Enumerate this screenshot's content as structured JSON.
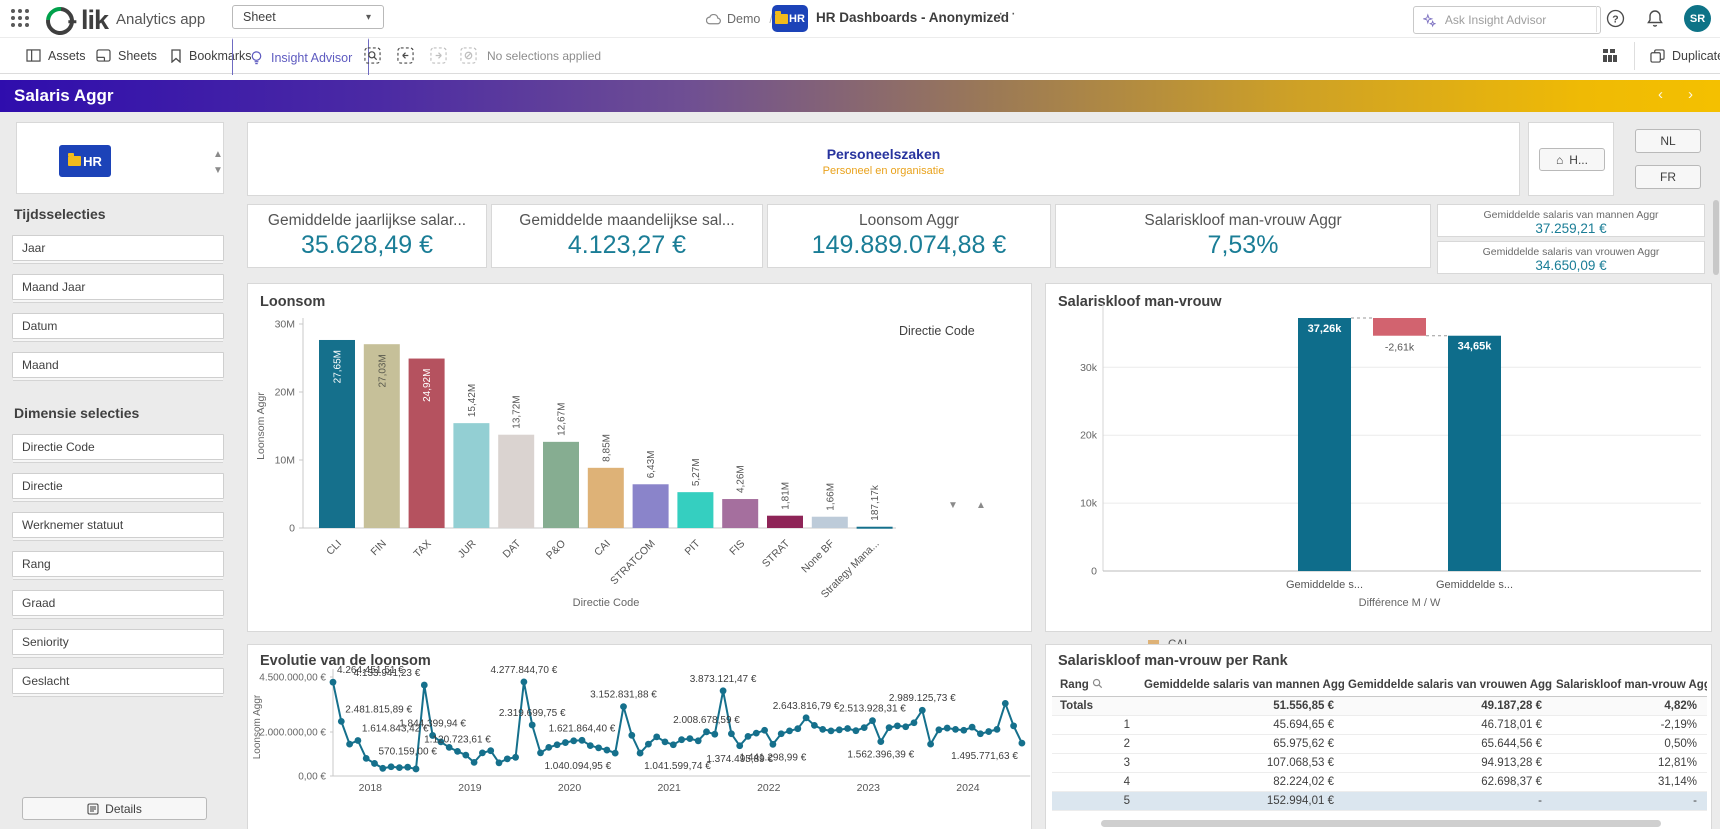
{
  "header": {
    "app_label": "Analytics app",
    "sheet_selector": "Sheet",
    "space_name": "Demo",
    "app_icon_text": "HR",
    "app_name": "HR Dashboards - Anonymized",
    "search_placeholder": "Ask Insight Advisor",
    "avatar_initials": "SR"
  },
  "toolbar": {
    "assets": "Assets",
    "sheets": "Sheets",
    "bookmarks": "Bookmarks",
    "insight_advisor": "Insight Advisor",
    "no_selections": "No selections applied",
    "duplicate": "Duplicate"
  },
  "banner": {
    "title": "Salaris Aggr"
  },
  "sidebar": {
    "logo_text": "HR",
    "sections": [
      {
        "title": "Tijdsselecties",
        "items": [
          "Jaar",
          "Maand Jaar",
          "Datum",
          "Maand"
        ]
      },
      {
        "title": "Dimensie selecties",
        "items": [
          "Directie Code",
          "Directie",
          "Werknemer statuut",
          "Rang",
          "Graad",
          "Seniority",
          "Geslacht"
        ]
      }
    ],
    "details_button": "Details"
  },
  "top_panel": {
    "title": "Personeelszaken",
    "subtitle": "Personeel en organisatie",
    "home_button": "H...",
    "lang_nl": "NL",
    "lang_fr": "FR"
  },
  "kpis": {
    "big": [
      {
        "label": "Gemiddelde jaarlijkse salar...",
        "value": "35.628,49 €"
      },
      {
        "label": "Gemiddelde maandelijkse sal...",
        "value": "4.123,27 €"
      },
      {
        "label": "Loonsom Aggr",
        "value": "149.889.074,88 €"
      },
      {
        "label": "Salariskloof man-vrouw Aggr",
        "value": "7,53%"
      }
    ],
    "small": [
      {
        "label": "Gemiddelde salaris van mannen Aggr",
        "value": "37.259,21 €"
      },
      {
        "label": "Gemiddelde salaris van vrouwen Aggr",
        "value": "34.650,09 €"
      }
    ]
  },
  "colors": {
    "kpi_value": "#1a7d96",
    "teal": "#15708c",
    "waterfall_red": "#d2636f",
    "banner_left": "#2f0dad",
    "banner_right": "#f4c000",
    "insight_purple": "#5e5bc0",
    "panel_title_navy": "#27339e",
    "panel_subtitle_gold": "#e9a21c",
    "selected_row": "#dbe6ef"
  },
  "chart_data": [
    {
      "id": "loonsom",
      "type": "bar",
      "title": "Loonsom",
      "xlabel": "Directie Code",
      "ylabel": "Loonsom Aggr",
      "ylim": [
        0,
        30000000
      ],
      "yticks": [
        "0",
        "10M",
        "20M",
        "30M"
      ],
      "legend": {
        "title": "Directie Code",
        "items": [
          {
            "label": "CAI",
            "color": "#deb277"
          },
          {
            "label": "CLI",
            "color": "#15708c"
          },
          {
            "label": "DAT",
            "color": "#dad3d0"
          },
          {
            "label": "FIN",
            "color": "#c6c099"
          }
        ]
      },
      "bars": [
        {
          "category": "CLI",
          "value": 27650000,
          "value_label": "27,65M",
          "color": "#15708c",
          "label_inside": true,
          "label_color": "#ffffff"
        },
        {
          "category": "FIN",
          "value": 27030000,
          "value_label": "27,03M",
          "color": "#c6c099",
          "label_inside": true,
          "label_color": "#5a5a4e"
        },
        {
          "category": "TAX",
          "value": 24920000,
          "value_label": "24,92M",
          "color": "#b5525f",
          "label_inside": true,
          "label_color": "#ffffff"
        },
        {
          "category": "JUR",
          "value": 15420000,
          "value_label": "15,42M",
          "color": "#93cfd3",
          "label_inside": false,
          "label_color": "#555555"
        },
        {
          "category": "DAT",
          "value": 13720000,
          "value_label": "13,72M",
          "color": "#dad3d0",
          "label_inside": false,
          "label_color": "#555555"
        },
        {
          "category": "P&O",
          "value": 12670000,
          "value_label": "12,67M",
          "color": "#86ad91",
          "label_inside": false,
          "label_color": "#555555"
        },
        {
          "category": "CAI",
          "value": 8850000,
          "value_label": "8,85M",
          "color": "#deb277",
          "label_inside": false,
          "label_color": "#555555"
        },
        {
          "category": "STRATCOM",
          "value": 6430000,
          "value_label": "6,43M",
          "color": "#8a84ca",
          "label_inside": false,
          "label_color": "#555555"
        },
        {
          "category": "PIT",
          "value": 5270000,
          "value_label": "5,27M",
          "color": "#35cfc0",
          "label_inside": false,
          "label_color": "#555555"
        },
        {
          "category": "FIS",
          "value": 4260000,
          "value_label": "4,26M",
          "color": "#a56f9e",
          "label_inside": false,
          "label_color": "#555555"
        },
        {
          "category": "STRAT",
          "value": 1810000,
          "value_label": "1,81M",
          "color": "#8e2457",
          "label_inside": false,
          "label_color": "#555555"
        },
        {
          "category": "None BF",
          "value": 1660000,
          "value_label": "1,66M",
          "color": "#bdcbd9",
          "label_inside": false,
          "label_color": "#555555"
        },
        {
          "category": "Strategy Mana...",
          "value": 187170,
          "value_label": "187,17k",
          "color": "#15708c",
          "label_inside": false,
          "label_color": "#555555"
        }
      ]
    },
    {
      "id": "salariskloof",
      "type": "waterfall",
      "title": "Salariskloof man-vrouw",
      "xlabel": "Différence M / W",
      "yticks": [
        "0",
        "10k",
        "20k",
        "30k"
      ],
      "ylim": [
        0,
        38000
      ],
      "bars": [
        {
          "category": "Gemiddelde s...",
          "value": 37259.21,
          "value_label": "37,26k",
          "color": "#0e6d8b"
        },
        {
          "category": "",
          "value": -2609.12,
          "value_label": "-2,61k",
          "color": "#d2636f"
        },
        {
          "category": "Gemiddelde s...",
          "value": 34650.09,
          "value_label": "34,65k",
          "color": "#0e6d8b"
        }
      ]
    },
    {
      "id": "evolutie",
      "type": "line",
      "title": "Evolutie van de loonsom",
      "ylabel": "Loonsom Aggr",
      "yticks": [
        "0,00 €",
        "2.000.000,00 €",
        "4.500.000,00 €"
      ],
      "ylim": [
        0,
        4500000
      ],
      "x_years": [
        "2018",
        "2019",
        "2020",
        "2021",
        "2022",
        "2023",
        "2024"
      ],
      "series": [
        4264451.51,
        2481815.89,
        1450000,
        1614843.42,
        800000,
        570159.0,
        350000,
        420000,
        380000,
        400000,
        320000,
        4133941.23,
        1844399.94,
        1550000,
        1300000,
        1120723.61,
        950000,
        620000,
        1050000,
        1150000,
        600000,
        780000,
        850000,
        4277844.7,
        2319699.75,
        1050000,
        1300000,
        1420000,
        1520000,
        1600000,
        1621864.4,
        1380000,
        1280000,
        1180000,
        1040094.95,
        3152831.88,
        1850000,
        1041599.74,
        1450000,
        1780000,
        1550000,
        1420000,
        1650000,
        1700000,
        1600000,
        2008678.59,
        1900000,
        3873121.47,
        1920000,
        1374495.89,
        1800000,
        1950000,
        2080000,
        1441298.99,
        1920000,
        2050000,
        2150000,
        2643816.79,
        2300000,
        2120000,
        2050000,
        2100000,
        2160000,
        2060000,
        2200000,
        2513928.31,
        1562396.39,
        2200000,
        2280000,
        2240000,
        2420000,
        2989125.73,
        1450000,
        2100000,
        2180000,
        2120000,
        2080000,
        2220000,
        1920000,
        2020000,
        2120000,
        3300000,
        2280000,
        1495771.63
      ],
      "point_labels": [
        {
          "i": 0,
          "text": "4.264.451,51 €",
          "side": "above",
          "anchor": "start"
        },
        {
          "i": 1,
          "text": "2.481.815,89 €",
          "side": "above",
          "anchor": "start"
        },
        {
          "i": 3,
          "text": "1.614.843,42 €",
          "side": "above",
          "anchor": "start"
        },
        {
          "i": 5,
          "text": "570.159,00 €",
          "side": "above",
          "anchor": "start"
        },
        {
          "i": 11,
          "text": "4.133.941,23 €",
          "side": "above",
          "anchor": "end"
        },
        {
          "i": 12,
          "text": "1.844.399,94 €",
          "side": "above",
          "anchor": "middle"
        },
        {
          "i": 15,
          "text": "1.120.723,61 €",
          "side": "above",
          "anchor": "middle"
        },
        {
          "i": 23,
          "text": "4.277.844,70 €",
          "side": "above",
          "anchor": "middle"
        },
        {
          "i": 24,
          "text": "2.319.699,75 €",
          "side": "above",
          "anchor": "middle"
        },
        {
          "i": 30,
          "text": "1.621.864,40 €",
          "side": "above",
          "anchor": "middle"
        },
        {
          "i": 34,
          "text": "1.040.094,95 €",
          "side": "below",
          "anchor": "end"
        },
        {
          "i": 35,
          "text": "3.152.831,88 €",
          "side": "above",
          "anchor": "middle"
        },
        {
          "i": 37,
          "text": "1.041.599,74 €",
          "side": "below",
          "anchor": "start"
        },
        {
          "i": 45,
          "text": "2.008.678,59 €",
          "side": "above",
          "anchor": "middle"
        },
        {
          "i": 47,
          "text": "3.873.121,47 €",
          "side": "above",
          "anchor": "middle"
        },
        {
          "i": 49,
          "text": "1.374.495,89 €",
          "side": "below",
          "anchor": "middle"
        },
        {
          "i": 53,
          "text": "1.441.298,99 €",
          "side": "below",
          "anchor": "middle"
        },
        {
          "i": 57,
          "text": "2.643.816,79 €",
          "side": "above",
          "anchor": "middle"
        },
        {
          "i": 65,
          "text": "2.513.928,31 €",
          "side": "above",
          "anchor": "middle"
        },
        {
          "i": 66,
          "text": "1.562.396,39 €",
          "side": "below",
          "anchor": "middle"
        },
        {
          "i": 71,
          "text": "2.989.125,73 €",
          "side": "above",
          "anchor": "middle"
        },
        {
          "i": 83,
          "text": "1.495.771,63 €",
          "side": "below",
          "anchor": "end"
        }
      ]
    },
    {
      "id": "rank_table",
      "type": "table",
      "title": "Salariskloof man-vrouw per Rank",
      "columns": [
        "Rang",
        "Gemiddelde salaris van mannen Aggr",
        "Gemiddelde salaris van vrouwen Aggr",
        "Salariskloof man-vrouw Aggr"
      ],
      "rows": [
        [
          "Totals",
          "51.556,85 €",
          "49.187,28 €",
          "4,82%"
        ],
        [
          "1",
          "45.694,65 €",
          "46.718,01 €",
          "-2,19%"
        ],
        [
          "2",
          "65.975,62 €",
          "65.644,56 €",
          "0,50%"
        ],
        [
          "3",
          "107.068,53 €",
          "94.913,28 €",
          "12,81%"
        ],
        [
          "4",
          "82.224,02 €",
          "62.698,37 €",
          "31,14%"
        ],
        [
          "5",
          "152.994,01 €",
          "-",
          "-"
        ]
      ]
    }
  ]
}
